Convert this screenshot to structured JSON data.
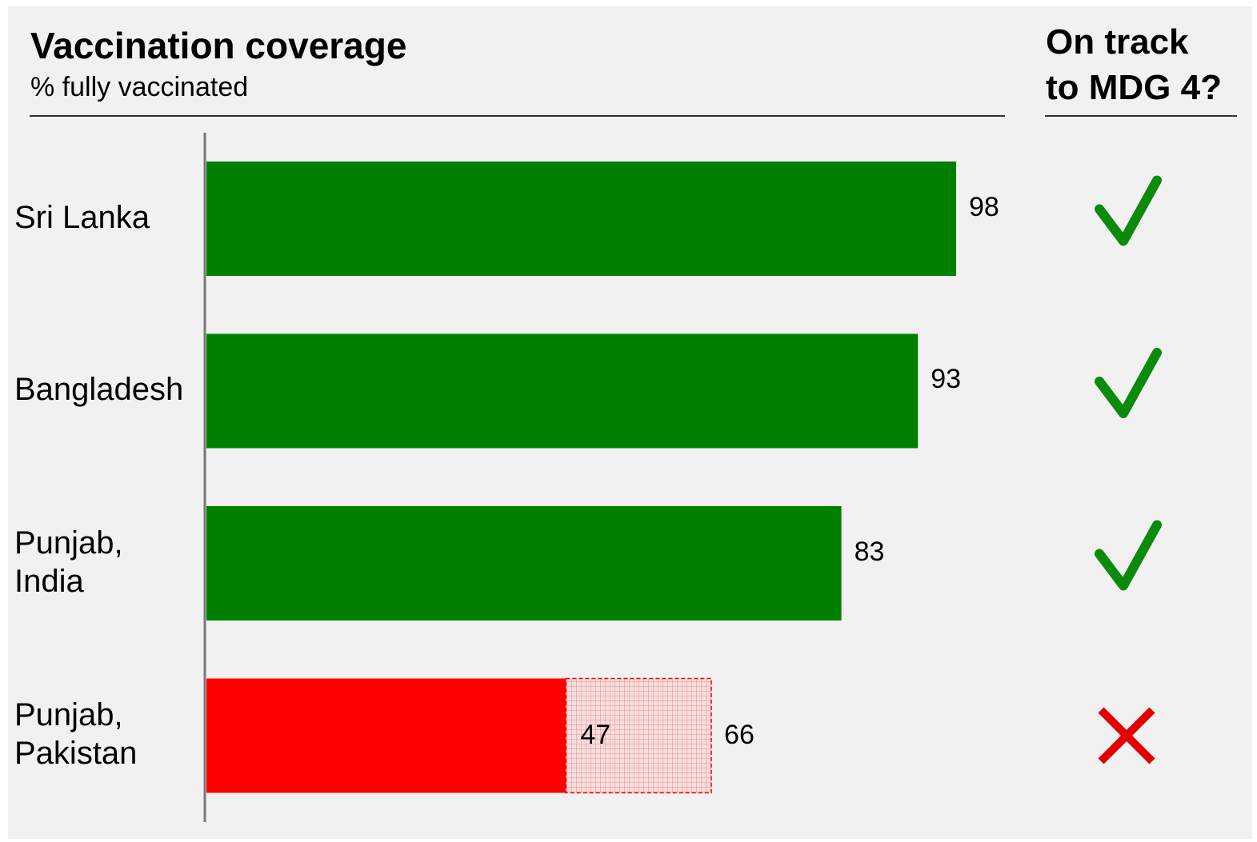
{
  "title": "Vaccination coverage",
  "subtitle": "% fully vaccinated",
  "track_title_lines": [
    "On track",
    "to MDG 4?"
  ],
  "colors": {
    "on_track": "#008000",
    "off_track": "#ff0000",
    "hatch": "#f5c9c9",
    "check": "#0b8a0b",
    "cross": "#e00000"
  },
  "chart_data": {
    "type": "bar",
    "orientation": "horizontal",
    "categories": [
      [
        "Sri Lanka"
      ],
      [
        "Bangladesh"
      ],
      [
        "Punjab,",
        "India"
      ],
      [
        "Punjab,",
        "Pakistan"
      ]
    ],
    "values": [
      98,
      93,
      83,
      47
    ],
    "extended_values": [
      null,
      null,
      null,
      66
    ],
    "value_labels": [
      "98",
      "93",
      "83",
      "47"
    ],
    "extended_labels": [
      null,
      null,
      null,
      "66"
    ],
    "on_track": [
      true,
      true,
      true,
      false
    ],
    "status_icons": [
      "check-icon",
      "check-icon",
      "check-icon",
      "cross-icon"
    ],
    "xlim": [
      0,
      100
    ],
    "grid": false,
    "legend": "none"
  }
}
